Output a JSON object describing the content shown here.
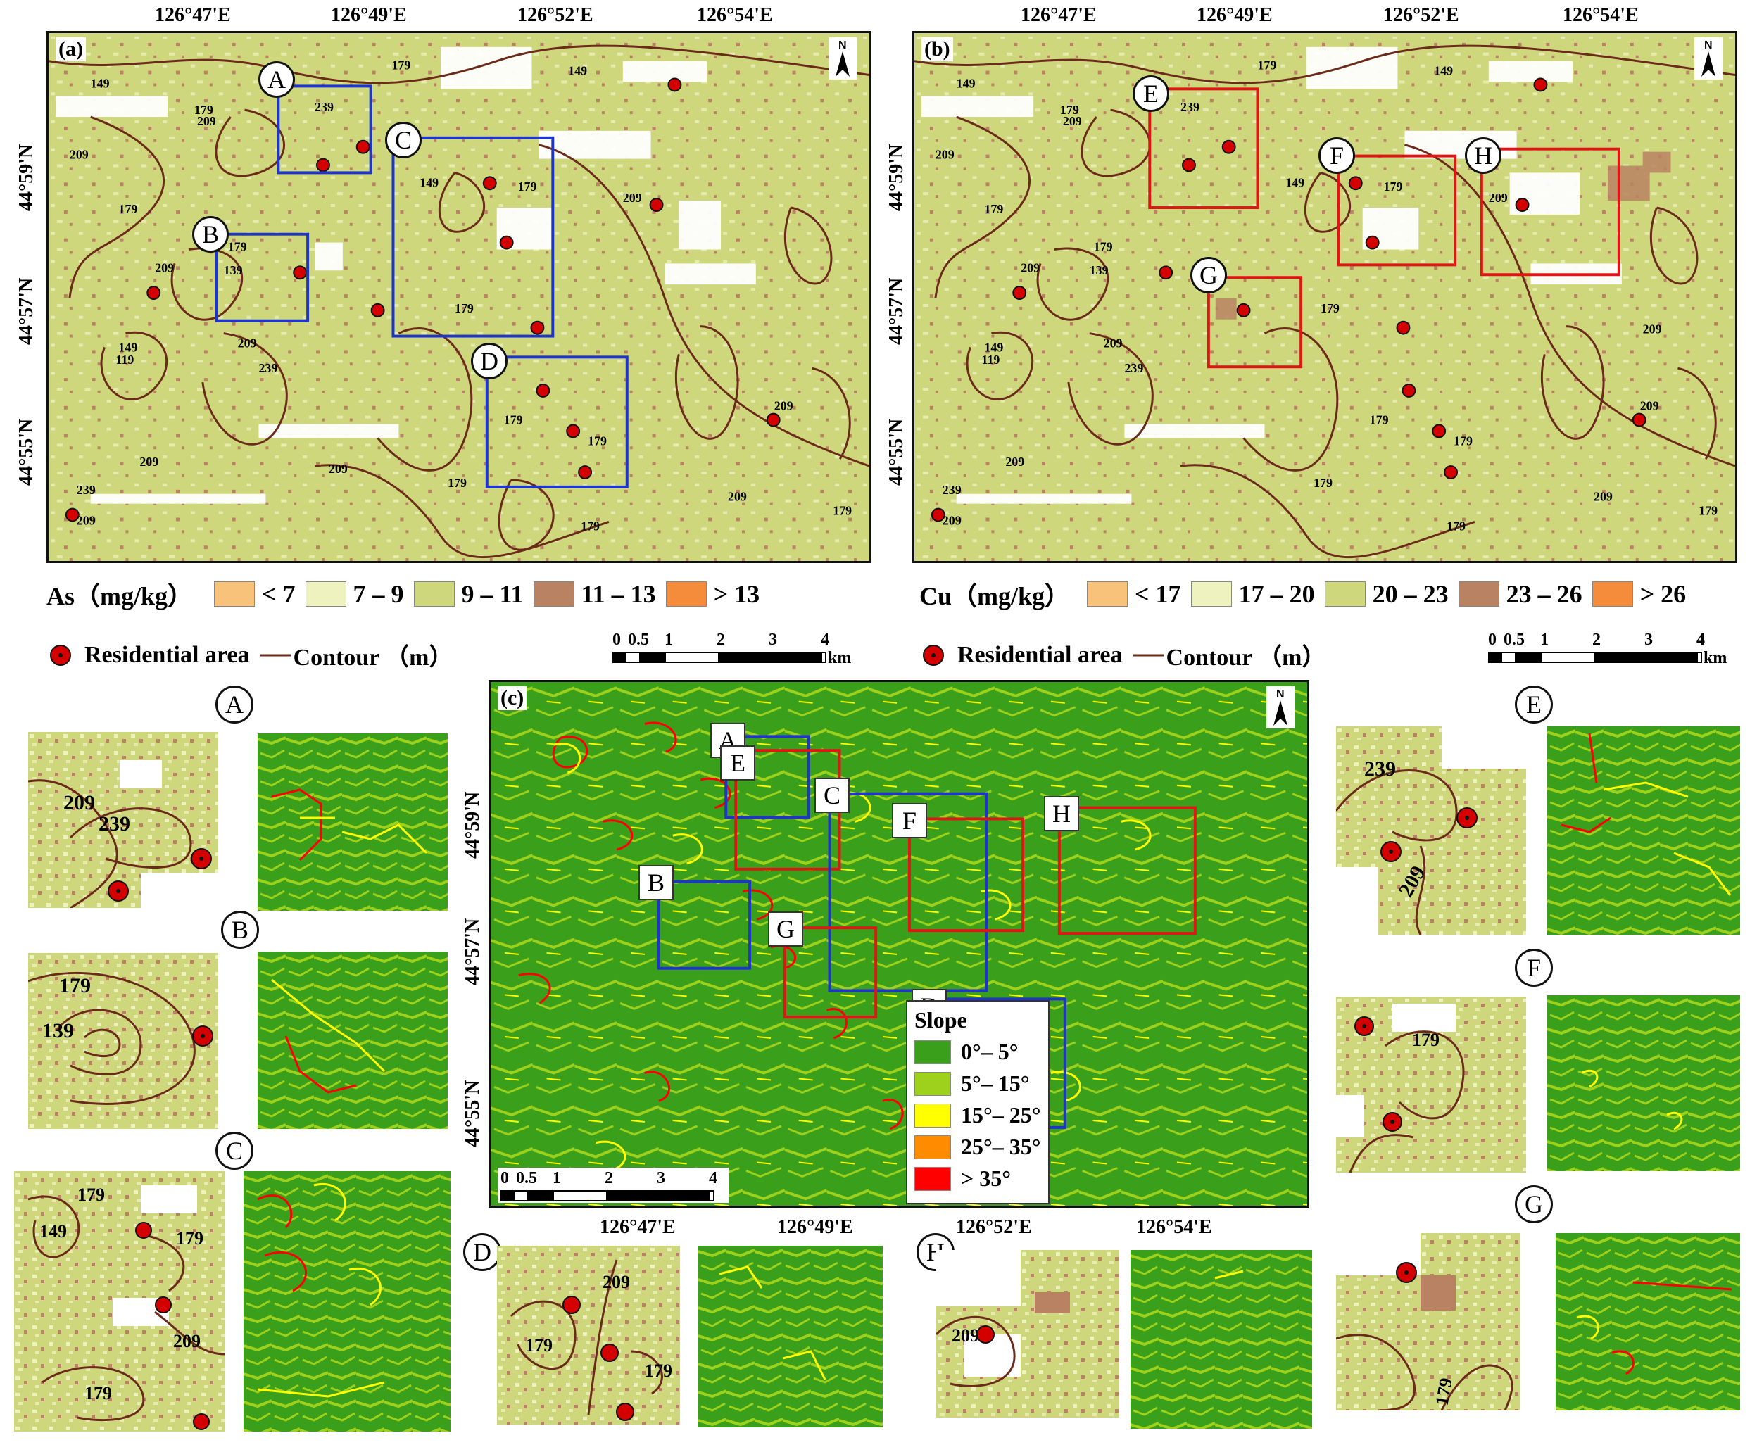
{
  "panel_a": {
    "label": "(a)",
    "top_coords": [
      "126°47'E",
      "126°49'E",
      "126°52'E",
      "126°54'E"
    ],
    "left_coords": [
      "44°59'N",
      "44°57'N",
      "44°55'N"
    ],
    "north": "N",
    "boxes": [
      "A",
      "B",
      "C",
      "D"
    ],
    "contours": [
      "149",
      "179",
      "209",
      "239",
      "139",
      "119"
    ]
  },
  "panel_b": {
    "label": "(b)",
    "top_coords": [
      "126°47'E",
      "126°49'E",
      "126°52'E",
      "126°54'E"
    ],
    "left_coords": [
      "44°59'N",
      "44°57'N",
      "44°55'N"
    ],
    "north": "N",
    "boxes": [
      "E",
      "F",
      "G",
      "H"
    ]
  },
  "panel_c": {
    "label": "(c)",
    "left_coords": [
      "44°59'N",
      "44°57'N",
      "44°55'N"
    ],
    "bottom_coords": [
      "126°47'E",
      "126°49'E",
      "126°52'E",
      "126°54'E"
    ],
    "north": "N",
    "boxes": [
      "A",
      "E",
      "C",
      "F",
      "H",
      "B",
      "G",
      "D"
    ]
  },
  "legend_as": {
    "title": "As（mg/kg）",
    "items": [
      {
        "label": "< 7",
        "color": "#f9c27a"
      },
      {
        "label": "7 – 9",
        "color": "#eef2bf"
      },
      {
        "label": "9 – 11",
        "color": "#cfd77c"
      },
      {
        "label": "11 – 13",
        "color": "#b98363"
      },
      {
        "label": "> 13",
        "color": "#f58c3c"
      }
    ]
  },
  "legend_cu": {
    "title": "Cu（mg/kg）",
    "items": [
      {
        "label": "< 17",
        "color": "#f9c27a"
      },
      {
        "label": "17 – 20",
        "color": "#eef2bf"
      },
      {
        "label": "20 – 23",
        "color": "#cfd77c"
      },
      {
        "label": "23 – 26",
        "color": "#b98363"
      },
      {
        "label": "> 26",
        "color": "#f58c3c"
      }
    ]
  },
  "legend_common": {
    "residential": "Residential area",
    "contour": "Contour （m）"
  },
  "scale": {
    "ticks": [
      "0",
      "0.5",
      "1",
      "2",
      "3",
      "4"
    ],
    "unit": "km"
  },
  "slope_legend": {
    "title": "Slope",
    "items": [
      {
        "label": "0°– 5°",
        "color": "#3aa01c"
      },
      {
        "label": "5°– 15°",
        "color": "#9ed11b"
      },
      {
        "label": "15°– 25°",
        "color": "#ffff00"
      },
      {
        "label": "25°– 35°",
        "color": "#ff8c00"
      },
      {
        "label": "> 35°",
        "color": "#ff0000"
      }
    ]
  },
  "insets": {
    "A": {
      "letter": "A",
      "contours": [
        "209",
        "239"
      ]
    },
    "B": {
      "letter": "B",
      "contours": [
        "179",
        "139"
      ]
    },
    "C": {
      "letter": "C",
      "contours": [
        "179",
        "149",
        "179",
        "209",
        "179"
      ]
    },
    "D": {
      "letter": "D",
      "contours": [
        "209",
        "179",
        "179"
      ]
    },
    "E": {
      "letter": "E",
      "contours": [
        "239",
        "209"
      ]
    },
    "F": {
      "letter": "F",
      "contours": [
        "179"
      ]
    },
    "G": {
      "letter": "G",
      "contours": [
        "179"
      ]
    },
    "H": {
      "letter": "H",
      "contours": [
        "209"
      ]
    }
  },
  "colors": {
    "soil_base": "#cfd77c",
    "soil_light": "#eef2bf",
    "soil_brown": "#b98363",
    "contour": "#6b2b1a",
    "residential": "#d40000",
    "box_blue": "#1f35c9",
    "box_red": "#e01515",
    "slope_green": "#3aa01c"
  }
}
